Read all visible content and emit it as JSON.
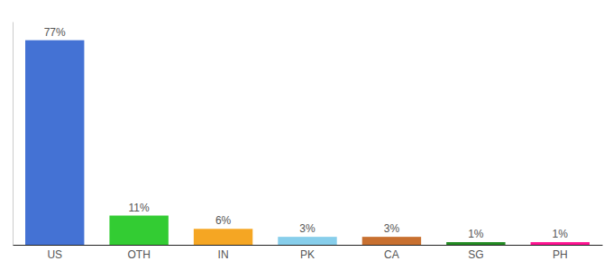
{
  "chart_data": {
    "type": "bar",
    "categories": [
      "US",
      "OTH",
      "IN",
      "PK",
      "CA",
      "SG",
      "PH"
    ],
    "values": [
      77,
      11,
      6,
      3,
      3,
      1,
      1
    ],
    "value_labels": [
      "77%",
      "11%",
      "6%",
      "3%",
      "3%",
      "1%",
      "1%"
    ],
    "colors": [
      "#4472d4",
      "#33cc33",
      "#f5a623",
      "#87ceeb",
      "#c87030",
      "#228b22",
      "#ff1493"
    ],
    "ylim": [
      0,
      84
    ],
    "data_labels": true,
    "tick_labels": "x",
    "grid": false
  }
}
